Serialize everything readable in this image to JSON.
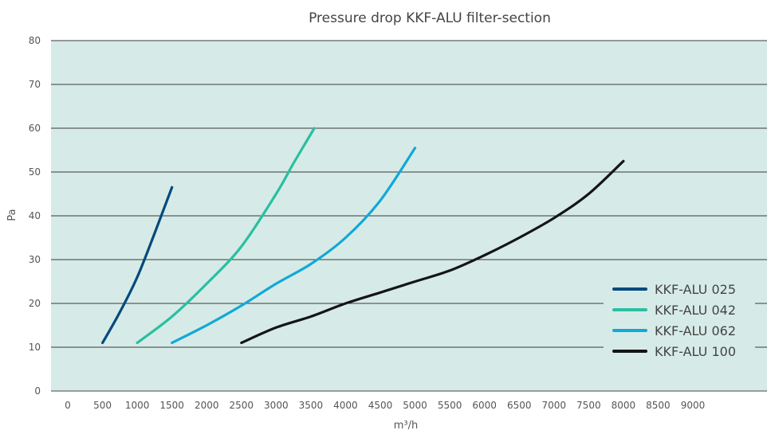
{
  "chart_data": {
    "type": "line",
    "title": "Pressure drop KKF-ALU filter-section",
    "xlabel": "m³/h",
    "ylabel": "Pa",
    "xlim": [
      0,
      9000
    ],
    "ylim": [
      0,
      80
    ],
    "x_ticks": [
      0,
      500,
      1000,
      1500,
      2000,
      2500,
      3000,
      3500,
      4000,
      4500,
      5000,
      5500,
      6000,
      6500,
      7000,
      7500,
      8000,
      8500,
      9000
    ],
    "y_ticks": [
      0,
      10,
      20,
      30,
      40,
      50,
      60,
      70,
      80
    ],
    "grid": "horizontal",
    "legend": "bottom-right",
    "plot_background": "#d6ebe7",
    "series": [
      {
        "name": "KKF-ALU 025",
        "color": "#034a7d",
        "points": [
          [
            500,
            11
          ],
          [
            750,
            18
          ],
          [
            1000,
            26
          ],
          [
            1250,
            36
          ],
          [
            1500,
            46.5
          ]
        ]
      },
      {
        "name": "KKF-ALU 042",
        "color": "#2abfa0",
        "points": [
          [
            1000,
            11
          ],
          [
            1500,
            17
          ],
          [
            2000,
            24.5
          ],
          [
            2500,
            33
          ],
          [
            3000,
            45
          ],
          [
            3250,
            52
          ],
          [
            3550,
            60
          ]
        ]
      },
      {
        "name": "KKF-ALU 062",
        "color": "#12a8d8",
        "points": [
          [
            1500,
            11
          ],
          [
            2000,
            15
          ],
          [
            2500,
            19.5
          ],
          [
            3000,
            24.5
          ],
          [
            3500,
            29
          ],
          [
            4000,
            35
          ],
          [
            4500,
            43.5
          ],
          [
            5000,
            55.5
          ]
        ]
      },
      {
        "name": "KKF-ALU 100",
        "color": "#151515",
        "points": [
          [
            2500,
            11
          ],
          [
            3000,
            14.5
          ],
          [
            3500,
            17
          ],
          [
            4000,
            20
          ],
          [
            4500,
            22.5
          ],
          [
            5000,
            25
          ],
          [
            5500,
            27.5
          ],
          [
            6000,
            31
          ],
          [
            6500,
            35
          ],
          [
            7000,
            39.5
          ],
          [
            7500,
            45
          ],
          [
            8000,
            52.5
          ]
        ]
      }
    ]
  }
}
